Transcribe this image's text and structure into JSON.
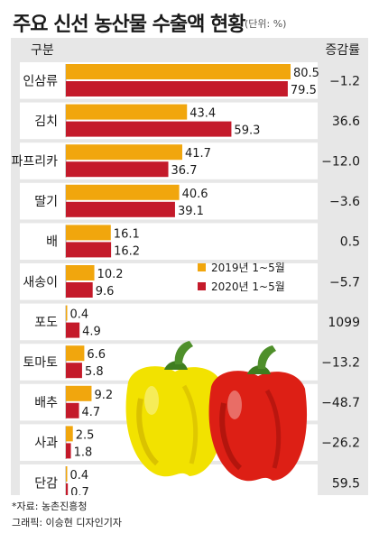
{
  "header": {
    "title": "주요 신선 농산물 수출액 현황",
    "unit": "(단위: %)"
  },
  "table": {
    "category_header": "구분",
    "rate_header": "증감률"
  },
  "chart_data": {
    "type": "bar",
    "orientation": "horizontal",
    "categories": [
      "인삼류",
      "김치",
      "파프리카",
      "딸기",
      "배",
      "새송이",
      "포도",
      "토마토",
      "배추",
      "사과",
      "단감"
    ],
    "series": [
      {
        "name": "2019년 1~5월",
        "values": [
          80.5,
          43.4,
          41.7,
          40.6,
          16.1,
          10.2,
          0.4,
          6.6,
          9.2,
          2.5,
          0.4
        ],
        "labels": [
          "80.5",
          "43.4",
          "41.7",
          "40.6",
          "16.1",
          "10.2",
          "0.4",
          "6.6",
          "9.2",
          "2.5",
          "0.4"
        ],
        "color": "#f1a60d"
      },
      {
        "name": "2020년 1~5월",
        "values": [
          79.5,
          59.3,
          36.7,
          39.1,
          16.2,
          9.6,
          4.9,
          5.8,
          4.7,
          1.8,
          0.7
        ],
        "labels": [
          "79.5",
          "59.3",
          "36.7",
          "39.1",
          "16.2",
          "9.6",
          "4.9",
          "5.8",
          "4.7",
          "1.8",
          "0.7"
        ],
        "color": "#c41a2a"
      }
    ],
    "change_rate": [
      "−1.2",
      "36.6",
      "−12.0",
      "−3.6",
      "0.5",
      "−5.7",
      "1099",
      "−13.2",
      "−48.7",
      "−26.2",
      "59.5"
    ],
    "legend_placement": "middle-right"
  },
  "footer": {
    "source": "*자료: 농촌진흥청",
    "credit": "그래픽: 이승현 디자인기자"
  }
}
